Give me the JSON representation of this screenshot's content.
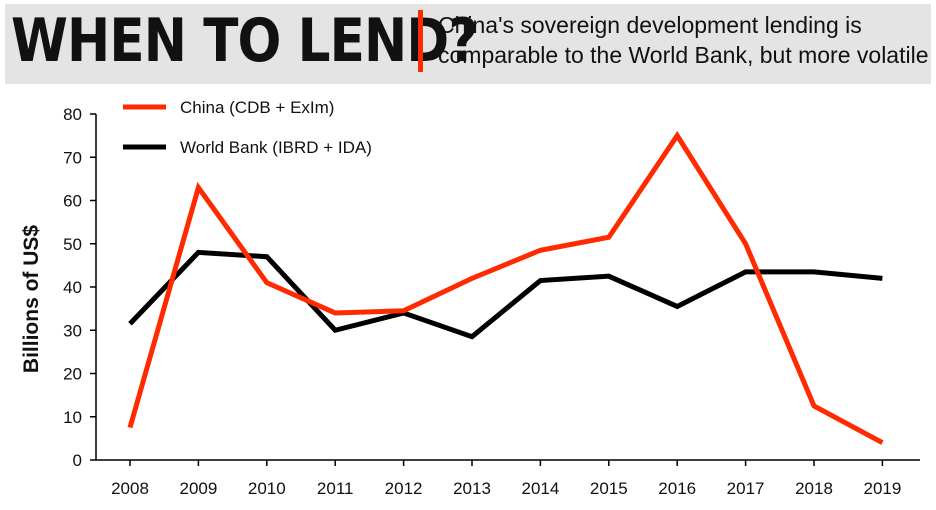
{
  "header": {
    "title": "WHEN TO LEND?",
    "subtitle_line1": "China's sovereign development lending is",
    "subtitle_line2": "comparable to the World Bank, but more volatile"
  },
  "chart_data": {
    "type": "line",
    "title": "WHEN TO LEND?",
    "subtitle": "China's sovereign development lending is comparable to the World Bank, but more volatile",
    "xlabel": "",
    "ylabel": "Billions of US$",
    "ylim": [
      0,
      80
    ],
    "yticks": [
      0,
      10,
      20,
      30,
      40,
      50,
      60,
      70,
      80
    ],
    "grid": false,
    "legend_position": "top-left",
    "categories": [
      "2008",
      "2009",
      "2010",
      "2011",
      "2012",
      "2013",
      "2014",
      "2015",
      "2016",
      "2017",
      "2018",
      "2019"
    ],
    "series": [
      {
        "name": "China (CDB + ExIm)",
        "color": "#ff2a00",
        "values": [
          7.5,
          63,
          41,
          34,
          34.5,
          42,
          48.5,
          51.5,
          75,
          50,
          12.5,
          4
        ]
      },
      {
        "name": "World Bank (IBRD + IDA)",
        "color": "#000000",
        "values": [
          31.5,
          48,
          47,
          30,
          34,
          28.5,
          41.5,
          42.5,
          35.5,
          43.5,
          43.5,
          42
        ]
      }
    ]
  }
}
